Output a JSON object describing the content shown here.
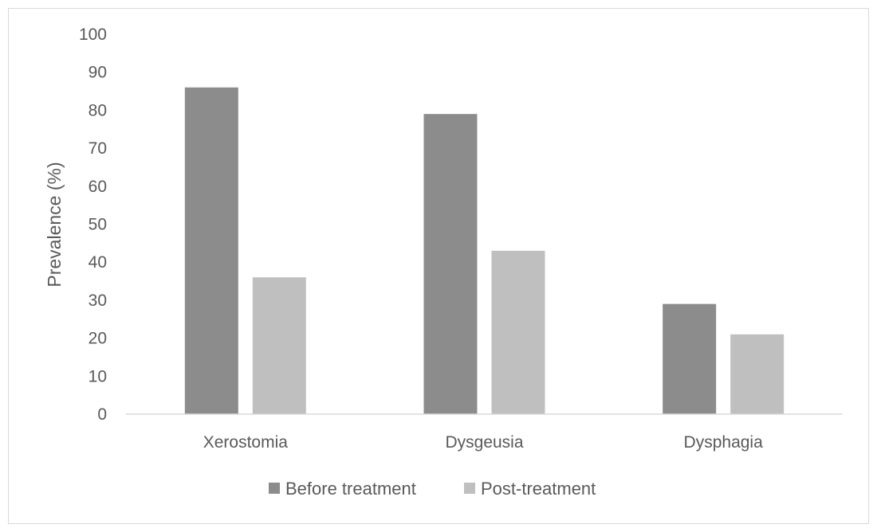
{
  "chart_data": {
    "type": "bar",
    "categories": [
      "Xerostomia",
      "Dysgeusia",
      "Dysphagia"
    ],
    "series": [
      {
        "name": "Before treatment",
        "values": [
          86,
          79,
          29
        ],
        "color": "#8c8c8c"
      },
      {
        "name": "Post-treatment",
        "values": [
          36,
          43,
          21
        ],
        "color": "#bfbfbf"
      }
    ],
    "title": "",
    "xlabel": "",
    "ylabel": "Prevalence (%)",
    "ylim": [
      0,
      100
    ],
    "yticks": [
      0,
      10,
      20,
      30,
      40,
      50,
      60,
      70,
      80,
      90,
      100
    ],
    "grid": false,
    "legend": "bottom"
  }
}
